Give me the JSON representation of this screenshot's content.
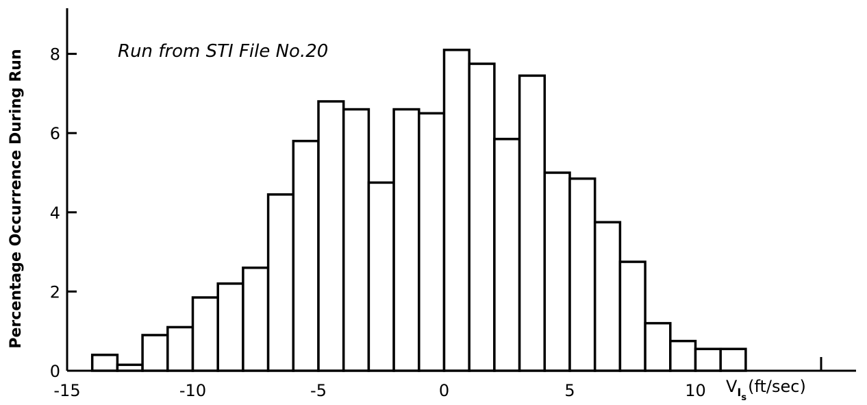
{
  "chart_data": {
    "type": "bar",
    "title": "",
    "annotation": "Run from STI File No.20",
    "ylabel": "Percentage Occurrence During Run",
    "xlabel": {
      "symbol": "V",
      "subscript_main": "I",
      "subscript_sub": "s",
      "unit": "(ft/sec)"
    },
    "xlim": [
      -15,
      15
    ],
    "ylim": [
      0,
      9
    ],
    "x_ticks": [
      -15,
      -10,
      -5,
      0,
      5,
      10
    ],
    "x_tick_labels": [
      "-15",
      "-10",
      "-5",
      "0",
      "5",
      "10"
    ],
    "extra_x_tick": 15,
    "y_ticks": [
      0,
      2,
      4,
      6,
      8
    ],
    "y_tick_labels": [
      "0",
      "2",
      "4",
      "6",
      "8"
    ],
    "bin_width": 1,
    "bin_starts": [
      -14,
      -13,
      -12,
      -11,
      -10,
      -9,
      -8,
      -7,
      -6,
      -5,
      -4,
      -3,
      -2,
      -1,
      0,
      1,
      2,
      3,
      4,
      5,
      6,
      7,
      8,
      9,
      10,
      11
    ],
    "values": [
      0.4,
      0.15,
      0.9,
      1.1,
      1.85,
      2.2,
      2.6,
      4.45,
      5.8,
      6.8,
      6.6,
      4.75,
      6.6,
      6.5,
      8.1,
      7.75,
      5.85,
      7.45,
      5.0,
      4.85,
      3.75,
      2.75,
      1.2,
      0.75,
      0.55,
      0.55
    ],
    "grid": false,
    "legend": "none",
    "colors": {
      "bar_fill": "#ffffff",
      "bar_stroke": "#000000"
    }
  }
}
